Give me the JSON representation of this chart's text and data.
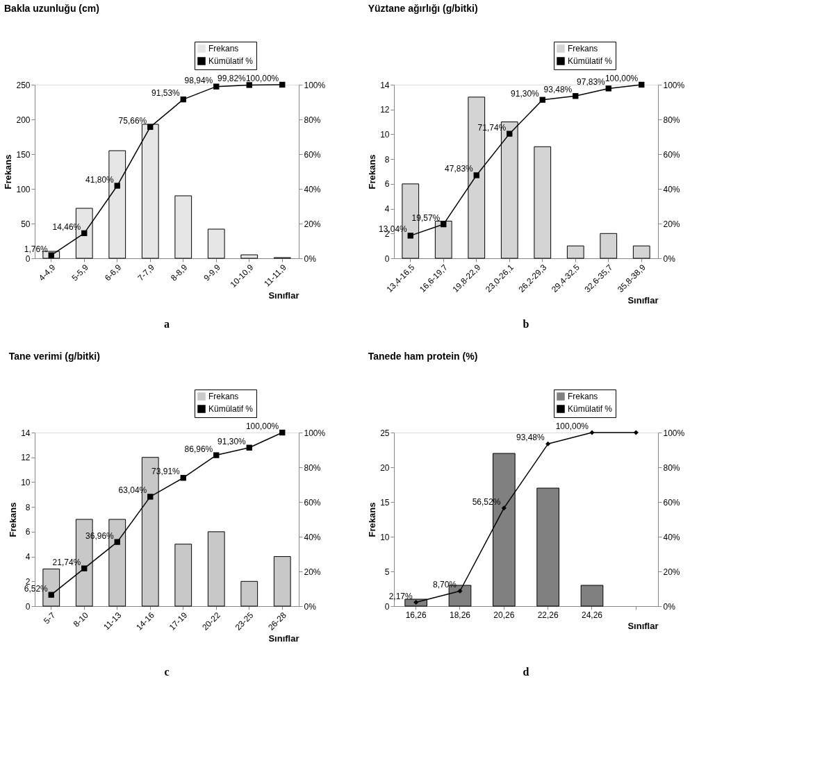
{
  "chart_data": [
    {
      "type": "bar",
      "title": "Bakla uzunluğu (cm)",
      "xlabel": "Sınıflar",
      "ylabel": "Frekans",
      "legend": "top right",
      "annotations": [
        "a"
      ],
      "categories": [
        "4-4,9",
        "5-5,9",
        "6-6,9",
        "7-7,9",
        "8-8,9",
        "9-9,9",
        "10-10,9",
        "11-11,9"
      ],
      "series": [
        {
          "name": "Frekans",
          "type": "bar",
          "color": "#e6e6e6",
          "values": [
            10,
            72,
            155,
            193,
            90,
            42,
            5,
            1
          ]
        },
        {
          "name": "Kümülatif %",
          "type": "line",
          "axis": "y2",
          "color": "#000000",
          "marker": "square",
          "line_style": "solid",
          "values": [
            1.76,
            14.46,
            41.8,
            75.66,
            91.53,
            98.94,
            99.82,
            100.0
          ],
          "value_labels": [
            "1,76%",
            "14,46%",
            "41,80%",
            "75,66%",
            "91,53%",
            "98,94%",
            "99,82%",
            "100,00%"
          ]
        }
      ],
      "ylim": [
        0,
        250
      ],
      "yticks": [
        0,
        50,
        100,
        150,
        200,
        250
      ],
      "y2lim": [
        0,
        100
      ],
      "y2ticks": [
        {
          "value": 0,
          "label": "0%"
        },
        {
          "value": 20,
          "label": "20%"
        },
        {
          "value": 40,
          "label": "40%"
        },
        {
          "value": 60,
          "label": "60%"
        },
        {
          "value": 80,
          "label": "80%"
        },
        {
          "value": 100,
          "label": "100%"
        }
      ]
    },
    {
      "type": "bar",
      "title": "Yüztane ağırlığı (g/bitki)",
      "xlabel": "Sınıflar",
      "ylabel": "Frekans",
      "legend": "top right",
      "annotations": [
        "b"
      ],
      "categories": [
        "13,4-16,5",
        "16,6-19,7",
        "19,8-22,9",
        "23,0-26,1",
        "26,2-29,3",
        "29,4-32,5",
        "32,6-35,7",
        "35,8-38,9"
      ],
      "series": [
        {
          "name": "Frekans",
          "type": "bar",
          "color": "#d4d4d4",
          "values": [
            6,
            3,
            13,
            11,
            9,
            1,
            2,
            1
          ]
        },
        {
          "name": "Kümülatif %",
          "type": "line",
          "axis": "y2",
          "color": "#000000",
          "marker": "square",
          "line_style": "solid",
          "values": [
            13.04,
            19.57,
            47.83,
            71.74,
            91.3,
            93.48,
            97.83,
            100.0
          ],
          "value_labels": [
            "13,04%",
            "19,57%",
            "47,83%",
            "71,74%",
            "91,30%",
            "93,48%",
            "97,83%",
            "100,00%"
          ]
        }
      ],
      "ylim": [
        0,
        14
      ],
      "yticks": [
        0,
        2,
        4,
        6,
        8,
        10,
        12,
        14
      ],
      "y2lim": [
        0,
        100
      ],
      "y2ticks": [
        {
          "value": 0,
          "label": "0%"
        },
        {
          "value": 20,
          "label": "20%"
        },
        {
          "value": 40,
          "label": "40%"
        },
        {
          "value": 60,
          "label": "60%"
        },
        {
          "value": 80,
          "label": "80%"
        },
        {
          "value": 100,
          "label": "100%"
        }
      ]
    },
    {
      "type": "bar",
      "title": "Tane verimi (g/bitki)",
      "xlabel": "Sınıflar",
      "ylabel": "Frekans",
      "legend": "top right",
      "annotations": [
        "c"
      ],
      "categories": [
        "5-7",
        "8-10",
        "11-13",
        "14-16",
        "17-19",
        "20-22",
        "23-25",
        "26-28"
      ],
      "series": [
        {
          "name": "Frekans",
          "type": "bar",
          "color": "#c8c8c8",
          "values": [
            3,
            7,
            7,
            12,
            5,
            6,
            2,
            4
          ]
        },
        {
          "name": "Kümülatif %",
          "type": "line",
          "axis": "y2",
          "color": "#000000",
          "marker": "square",
          "line_style": "solid",
          "values": [
            6.52,
            21.74,
            36.96,
            63.04,
            73.91,
            86.96,
            91.3,
            100.0
          ],
          "value_labels": [
            "6,52%",
            "21,74%",
            "36,96%",
            "63,04%",
            "73,91%",
            "86,96%",
            "91,30%",
            "100,00%"
          ]
        }
      ],
      "ylim": [
        0,
        14
      ],
      "yticks": [
        0,
        2,
        4,
        6,
        8,
        10,
        12,
        14
      ],
      "y2lim": [
        0,
        100
      ],
      "y2ticks": [
        {
          "value": 0,
          "label": "0%"
        },
        {
          "value": 20,
          "label": "20%"
        },
        {
          "value": 40,
          "label": "40%"
        },
        {
          "value": 60,
          "label": "60%"
        },
        {
          "value": 80,
          "label": "80%"
        },
        {
          "value": 100,
          "label": "100%"
        }
      ]
    },
    {
      "type": "bar",
      "title": "Tanede ham protein (%)",
      "xlabel": "Sınıflar",
      "ylabel": "Frekans",
      "legend": "top right",
      "annotations": [
        "d"
      ],
      "categories": [
        "16,26",
        "18,26",
        "20,26",
        "22,26",
        "24,26",
        null
      ],
      "series": [
        {
          "name": "Frekans",
          "type": "bar",
          "color": "#808080",
          "values": [
            1,
            3,
            22,
            17,
            3,
            null
          ]
        },
        {
          "name": "Kümülatif %",
          "type": "line",
          "axis": "y2",
          "color": "#000000",
          "marker": "diamond",
          "line_style": "solid",
          "values": [
            2.17,
            8.7,
            56.52,
            93.48,
            100.0,
            100.0
          ],
          "value_labels": [
            "2,17%",
            "8,70%",
            "56,52%",
            "93,48%",
            "100,00%",
            null
          ]
        }
      ],
      "ylim": [
        0,
        25
      ],
      "yticks": [
        0,
        5,
        10,
        15,
        20,
        25
      ],
      "y2lim": [
        0,
        100
      ],
      "y2ticks": [
        {
          "value": 0,
          "label": "0%"
        },
        {
          "value": 20,
          "label": "20%"
        },
        {
          "value": 40,
          "label": "40%"
        },
        {
          "value": 60,
          "label": "60%"
        },
        {
          "value": 80,
          "label": "80%"
        },
        {
          "value": 100,
          "label": "100%"
        }
      ]
    }
  ]
}
